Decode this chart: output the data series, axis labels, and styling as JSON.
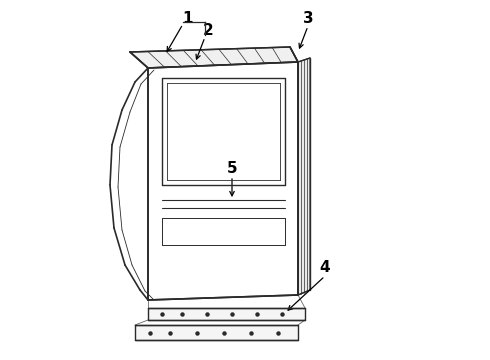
{
  "background_color": "#ffffff",
  "line_color": "#2a2a2a",
  "label_color": "#000000",
  "fig_w": 4.9,
  "fig_h": 3.6,
  "dpi": 100
}
